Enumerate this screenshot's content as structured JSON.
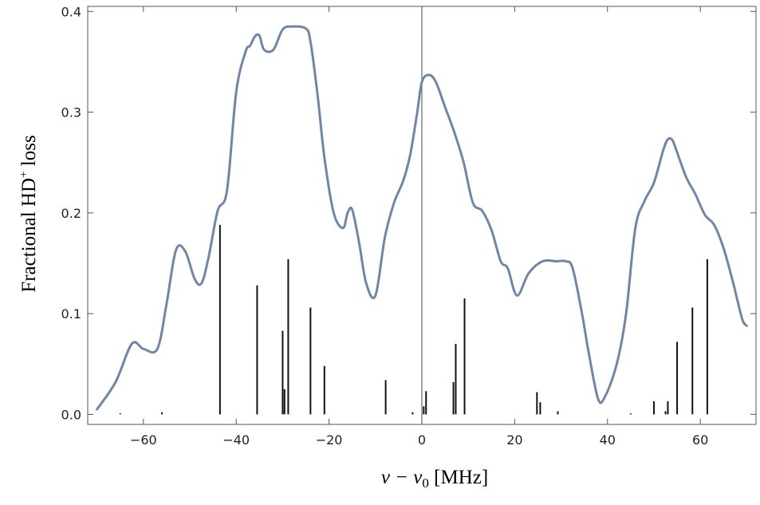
{
  "chart_data": {
    "type": "line",
    "title": "",
    "xlabel_parts": {
      "nu": "ν",
      "minus": " − ν",
      "sub": "0",
      "unit": " [MHz]"
    },
    "ylabel_parts": {
      "main": "Fractional  HD",
      "sup": "+",
      "tail": " loss"
    },
    "xlim": [
      -72,
      72
    ],
    "ylim": [
      -0.01,
      0.405
    ],
    "xticks": [
      {
        "v": -60,
        "label": "−60"
      },
      {
        "v": -40,
        "label": "−40"
      },
      {
        "v": -20,
        "label": "−20"
      },
      {
        "v": 0,
        "label": "0"
      },
      {
        "v": 20,
        "label": "20"
      },
      {
        "v": 40,
        "label": "40"
      },
      {
        "v": 60,
        "label": "60"
      }
    ],
    "yticks": [
      {
        "v": 0.0,
        "label": "0.0"
      },
      {
        "v": 0.1,
        "label": "0.1"
      },
      {
        "v": 0.2,
        "label": "0.2"
      },
      {
        "v": 0.3,
        "label": "0.3"
      },
      {
        "v": 0.4,
        "label": "0.4"
      }
    ],
    "curve": {
      "x": [
        -70,
        -66,
        -62.5,
        -60,
        -57,
        -55,
        -53,
        -51,
        -49,
        -47.5,
        -46,
        -44,
        -42,
        -40,
        -38,
        -37,
        -36,
        -35,
        -34,
        -32,
        -30,
        -28,
        -25,
        -24,
        -22.5,
        -21,
        -19,
        -17,
        -16,
        -15,
        -13.5,
        -12,
        -10,
        -8,
        -6,
        -4,
        -2.5,
        -1,
        0,
        1.5,
        3,
        5,
        7,
        9,
        11,
        13,
        15,
        17,
        18.5,
        20.5,
        23,
        26,
        29,
        31,
        32.5,
        34.5,
        36,
        38,
        39.5,
        42,
        44,
        46,
        48,
        50,
        52,
        53,
        54,
        55,
        57,
        59,
        61,
        63,
        65,
        67,
        69,
        70
      ],
      "y": [
        0.005,
        0.032,
        0.07,
        0.065,
        0.065,
        0.11,
        0.163,
        0.162,
        0.135,
        0.13,
        0.155,
        0.202,
        0.222,
        0.32,
        0.36,
        0.366,
        0.375,
        0.376,
        0.362,
        0.362,
        0.382,
        0.385,
        0.383,
        0.37,
        0.318,
        0.255,
        0.2,
        0.185,
        0.2,
        0.203,
        0.17,
        0.13,
        0.118,
        0.175,
        0.21,
        0.232,
        0.258,
        0.3,
        0.33,
        0.337,
        0.33,
        0.305,
        0.28,
        0.25,
        0.21,
        0.202,
        0.183,
        0.152,
        0.145,
        0.118,
        0.14,
        0.152,
        0.152,
        0.152,
        0.145,
        0.1,
        0.06,
        0.015,
        0.018,
        0.05,
        0.1,
        0.185,
        0.212,
        0.23,
        0.262,
        0.273,
        0.272,
        0.26,
        0.235,
        0.218,
        0.198,
        0.188,
        0.165,
        0.132,
        0.095,
        0.088
      ]
    },
    "sticks": [
      {
        "x": -65,
        "h": 0.001
      },
      {
        "x": -56,
        "h": 0.002
      },
      {
        "x": -43.5,
        "h": 0.188
      },
      {
        "x": -35.5,
        "h": 0.128
      },
      {
        "x": -30,
        "h": 0.083
      },
      {
        "x": -29.6,
        "h": 0.025
      },
      {
        "x": -28.8,
        "h": 0.154
      },
      {
        "x": -24,
        "h": 0.106
      },
      {
        "x": -21,
        "h": 0.048
      },
      {
        "x": -7.8,
        "h": 0.034
      },
      {
        "x": -2,
        "h": 0.002
      },
      {
        "x": 0.4,
        "h": 0.008
      },
      {
        "x": 0.9,
        "h": 0.023
      },
      {
        "x": 6.8,
        "h": 0.032
      },
      {
        "x": 7.3,
        "h": 0.07
      },
      {
        "x": 9.2,
        "h": 0.115
      },
      {
        "x": 24.8,
        "h": 0.022
      },
      {
        "x": 25.5,
        "h": 0.012
      },
      {
        "x": 29.3,
        "h": 0.003
      },
      {
        "x": 45,
        "h": 0.001
      },
      {
        "x": 50,
        "h": 0.013
      },
      {
        "x": 52.5,
        "h": 0.003
      },
      {
        "x": 53,
        "h": 0.013
      },
      {
        "x": 55,
        "h": 0.072
      },
      {
        "x": 58.3,
        "h": 0.106
      },
      {
        "x": 61.5,
        "h": 0.154
      }
    ],
    "grid": false,
    "colors": {
      "curve": "#6f86a6",
      "sticks": "#111111",
      "axis": "#555555"
    }
  }
}
